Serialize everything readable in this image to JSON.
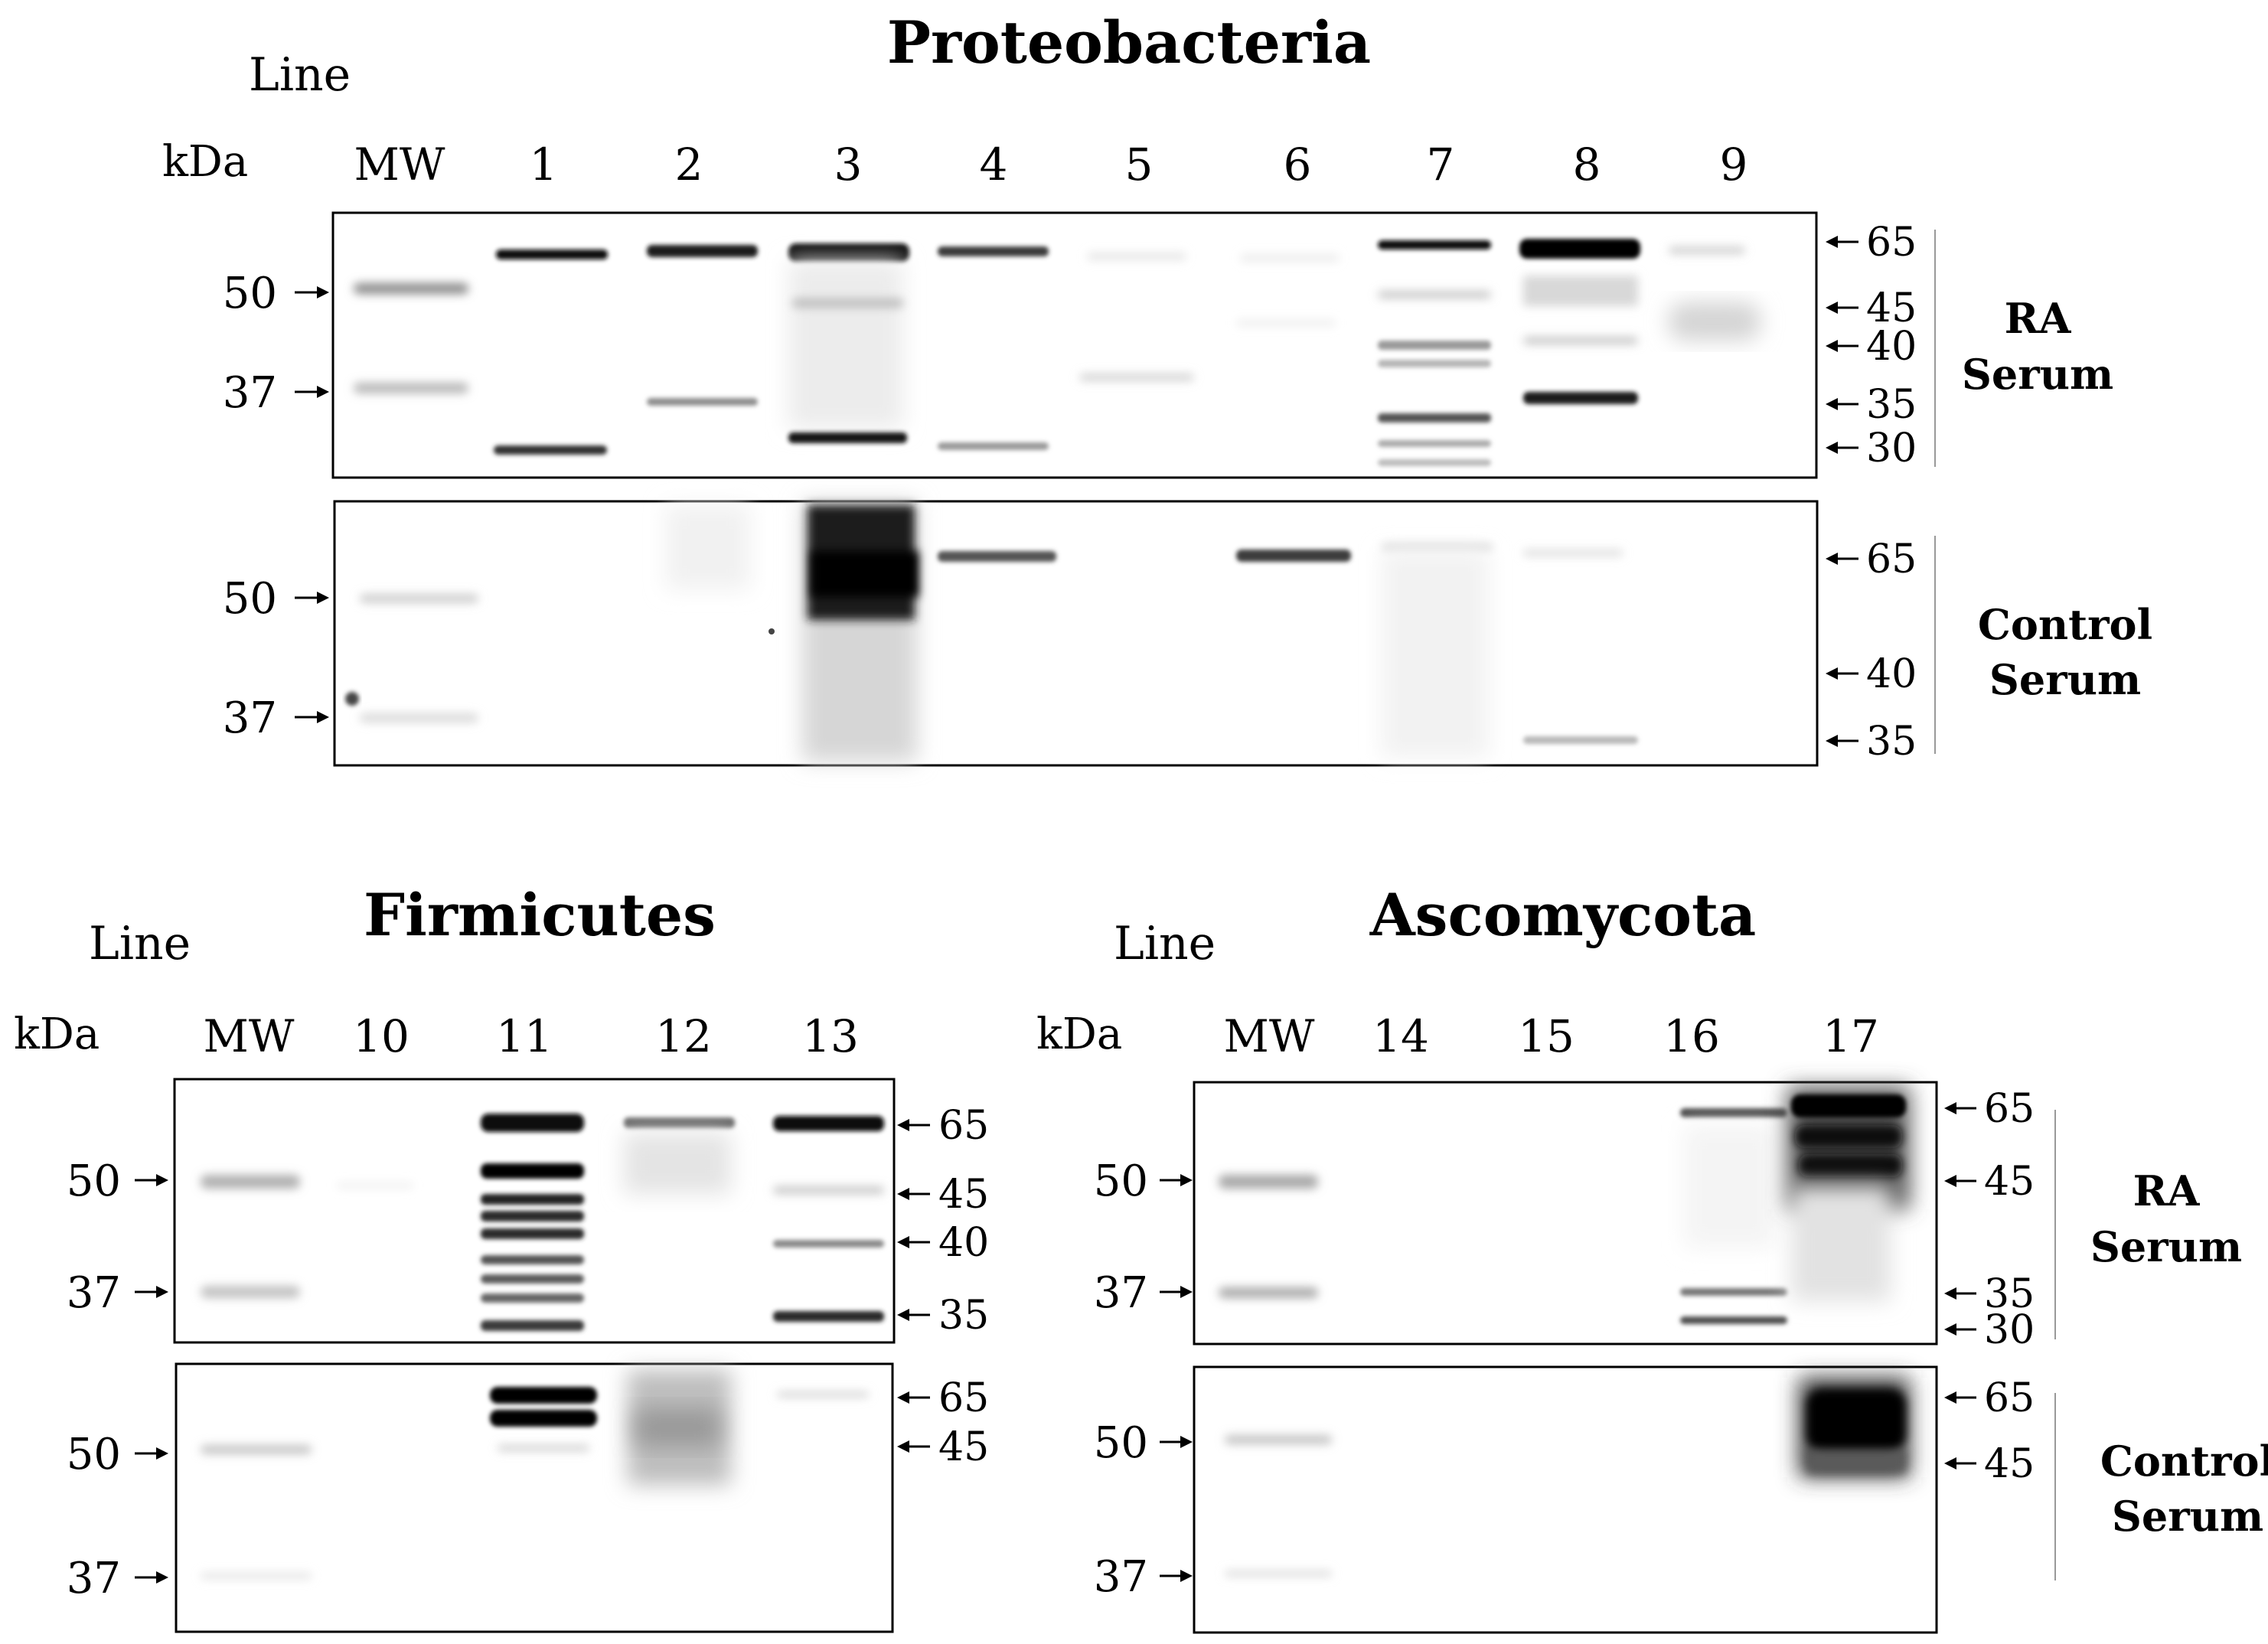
{
  "panels": [
    {
      "id": "proteobacteria",
      "title": "Proteobacteria",
      "line_label": "Line",
      "kda_label": "kDa",
      "lanes": [
        "MW",
        "1",
        "2",
        "3",
        "4",
        "5",
        "6",
        "7",
        "8",
        "9"
      ],
      "blots": [
        {
          "serum_lines": [
            "RA",
            "Serum"
          ],
          "left_markers": [
            "50",
            "37"
          ],
          "right_markers": [
            "65",
            "45",
            "40",
            "35",
            "30"
          ]
        },
        {
          "serum_lines": [
            "Control",
            "Serum"
          ],
          "left_markers": [
            "50",
            "37"
          ],
          "right_markers": [
            "65",
            "40",
            "35"
          ]
        }
      ]
    },
    {
      "id": "firmicutes",
      "title": "Firmicutes",
      "line_label": "Line",
      "kda_label": "kDa",
      "lanes": [
        "MW",
        "10",
        "11",
        "12",
        "13"
      ],
      "blots": [
        {
          "serum_lines": [],
          "left_markers": [
            "50",
            "37"
          ],
          "right_markers": [
            "65",
            "45",
            "40",
            "35"
          ]
        },
        {
          "serum_lines": [],
          "left_markers": [
            "50",
            "37"
          ],
          "right_markers": [
            "65",
            "45"
          ]
        }
      ]
    },
    {
      "id": "ascomycota",
      "title": "Ascomycota",
      "line_label": "Line",
      "kda_label": "kDa",
      "lanes": [
        "MW",
        "14",
        "15",
        "16",
        "17"
      ],
      "blots": [
        {
          "serum_lines": [
            "RA",
            "Serum"
          ],
          "left_markers": [
            "50",
            "37"
          ],
          "right_markers": [
            "65",
            "45",
            "35",
            "30"
          ]
        },
        {
          "serum_lines": [
            "Control",
            "Serum"
          ],
          "left_markers": [
            "50",
            "37"
          ],
          "right_markers": [
            "65",
            "45"
          ]
        }
      ]
    }
  ]
}
